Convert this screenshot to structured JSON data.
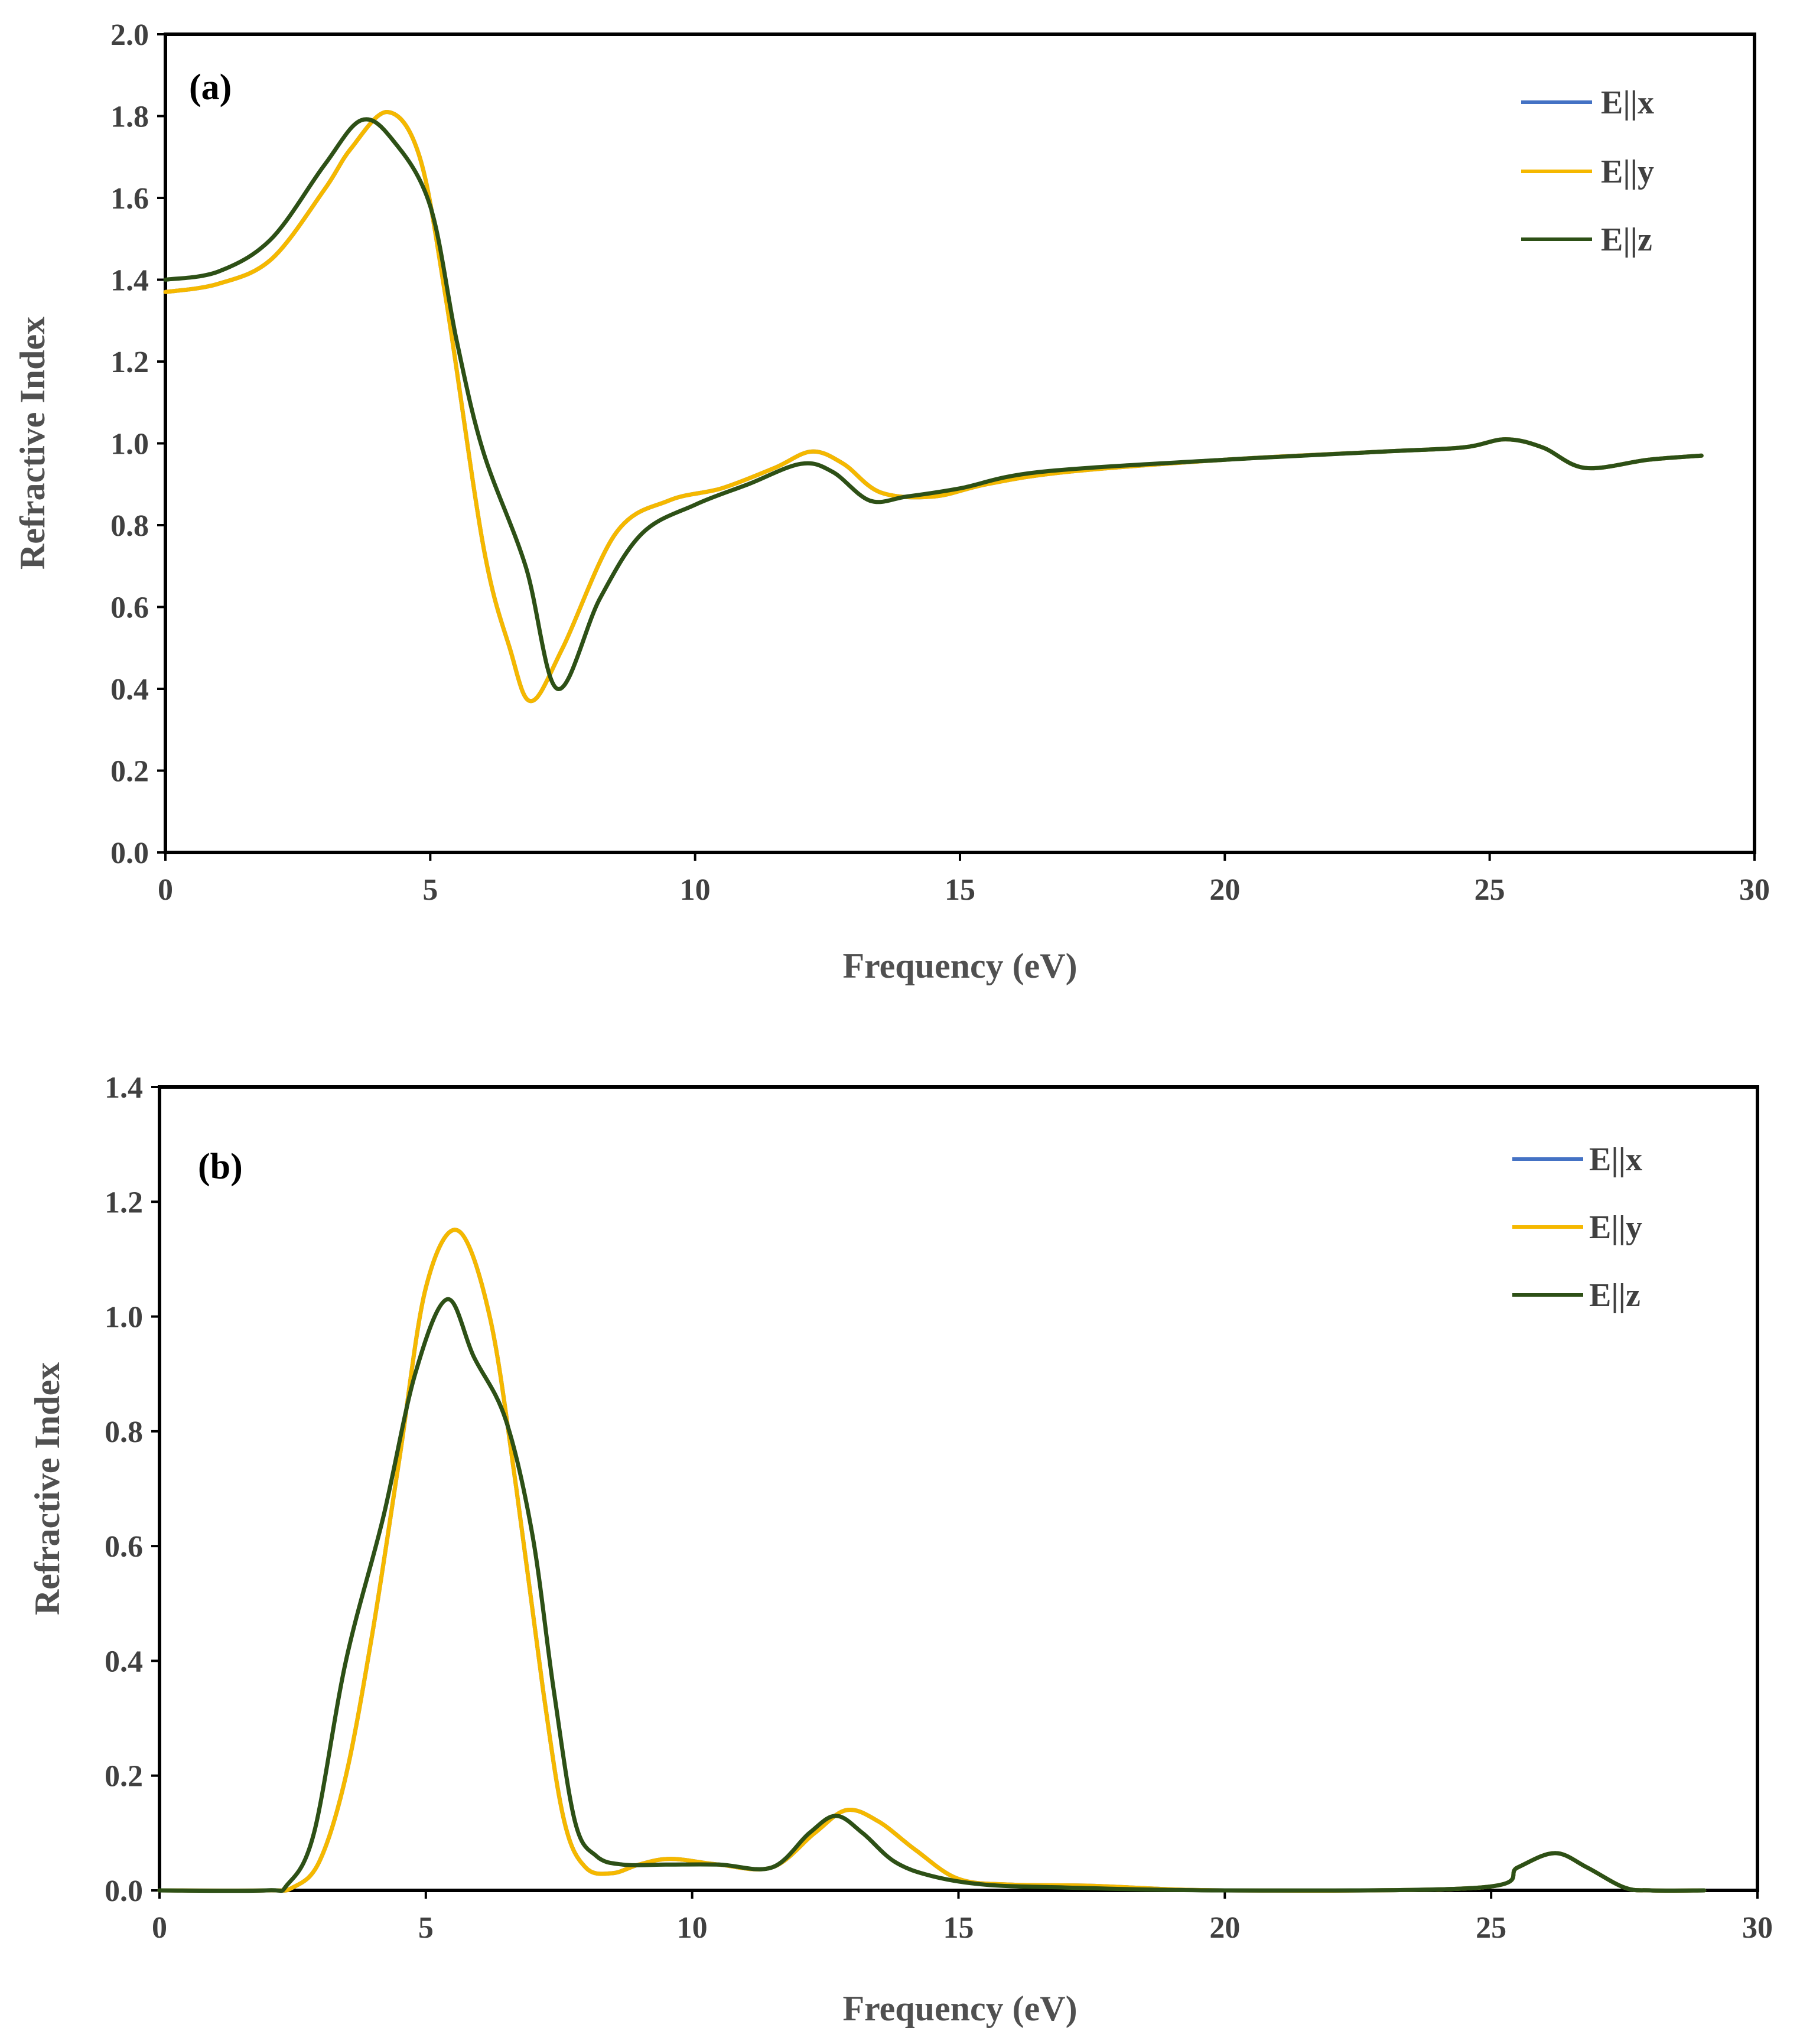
{
  "chart_data": [
    {
      "type": "line",
      "panel_label": "(a)",
      "xlabel": "Frequency (eV)",
      "ylabel": "Refractive Index",
      "xlim": [
        0,
        30
      ],
      "ylim": [
        0,
        2.0
      ],
      "x_ticks": [
        "0",
        "5",
        "10",
        "15",
        "20",
        "25",
        "30"
      ],
      "y_ticks": [
        "0.0",
        "0.2",
        "0.4",
        "0.6",
        "0.8",
        "1.0",
        "1.2",
        "1.4",
        "1.6",
        "1.8",
        "2.0"
      ],
      "legend_position": "top-right",
      "series": [
        {
          "name": "E||x",
          "color": "#4472C4",
          "x": [
            0,
            1,
            2,
            3,
            3.5,
            4.2,
            4.8,
            5.3,
            6.0,
            6.5,
            6.9,
            7.5,
            8.5,
            9.5,
            10.5,
            11.5,
            12.2,
            12.8,
            13.5,
            14.5,
            15.5,
            17,
            20,
            23,
            24.5,
            25.3,
            26,
            26.8,
            28,
            29
          ],
          "y": [
            1.37,
            1.39,
            1.45,
            1.62,
            1.72,
            1.81,
            1.7,
            1.35,
            0.75,
            0.5,
            0.37,
            0.5,
            0.78,
            0.86,
            0.89,
            0.94,
            0.98,
            0.95,
            0.88,
            0.87,
            0.9,
            0.93,
            0.96,
            0.98,
            0.99,
            1.01,
            0.99,
            0.94,
            0.96,
            0.97
          ]
        },
        {
          "name": "E||y",
          "color": "#F5B800",
          "x": [
            0,
            1,
            2,
            3,
            3.5,
            4.2,
            4.8,
            5.3,
            6.0,
            6.5,
            6.9,
            7.5,
            8.5,
            9.5,
            10.5,
            11.5,
            12.2,
            12.8,
            13.5,
            14.5,
            15.5,
            17,
            20,
            23,
            24.5,
            25.3,
            26,
            26.8,
            28,
            29
          ],
          "y": [
            1.37,
            1.39,
            1.45,
            1.62,
            1.72,
            1.81,
            1.7,
            1.35,
            0.75,
            0.5,
            0.37,
            0.5,
            0.78,
            0.86,
            0.89,
            0.94,
            0.98,
            0.95,
            0.88,
            0.87,
            0.9,
            0.93,
            0.96,
            0.98,
            0.99,
            1.01,
            0.99,
            0.94,
            0.96,
            0.97
          ]
        },
        {
          "name": "E||z",
          "color": "#2D5016",
          "x": [
            0,
            1,
            2,
            3,
            3.7,
            4.3,
            5.0,
            5.5,
            6.0,
            6.8,
            7.4,
            8.2,
            9.0,
            10.0,
            11.0,
            12.0,
            12.6,
            13.3,
            14.0,
            15.0,
            16.5,
            20,
            23,
            24.5,
            25.3,
            26,
            26.8,
            28,
            29
          ],
          "y": [
            1.4,
            1.42,
            1.5,
            1.68,
            1.79,
            1.74,
            1.58,
            1.25,
            0.98,
            0.7,
            0.4,
            0.62,
            0.78,
            0.85,
            0.9,
            0.95,
            0.93,
            0.86,
            0.87,
            0.89,
            0.93,
            0.96,
            0.98,
            0.99,
            1.01,
            0.99,
            0.94,
            0.96,
            0.97
          ]
        }
      ]
    },
    {
      "type": "line",
      "panel_label": "(b)",
      "xlabel": "Frequency (eV)",
      "ylabel": "Refractive Index",
      "xlim": [
        0,
        30
      ],
      "ylim": [
        0,
        1.4
      ],
      "x_ticks": [
        "0",
        "5",
        "10",
        "15",
        "20",
        "25",
        "30"
      ],
      "y_ticks": [
        "0.0",
        "0.2",
        "0.4",
        "0.6",
        "0.8",
        "1.0",
        "1.2",
        "1.4"
      ],
      "legend_position": "top-right",
      "series": [
        {
          "name": "E||x",
          "color": "#4472C4",
          "x": [
            0,
            2,
            2.5,
            3.0,
            3.5,
            4.0,
            4.5,
            5.0,
            5.6,
            6.2,
            6.7,
            7.2,
            7.6,
            8.0,
            8.5,
            9.0,
            9.6,
            10.5,
            11.5,
            12.3,
            12.9,
            13.5,
            14.2,
            15.0,
            16.0,
            17.5,
            20,
            24.8,
            25.5,
            26.2,
            26.8,
            27.5,
            28,
            29
          ],
          "y": [
            0,
            0,
            0.005,
            0.05,
            0.2,
            0.45,
            0.75,
            1.05,
            1.15,
            1.0,
            0.7,
            0.35,
            0.12,
            0.04,
            0.03,
            0.045,
            0.055,
            0.045,
            0.04,
            0.1,
            0.14,
            0.12,
            0.07,
            0.02,
            0.01,
            0.008,
            0,
            0.005,
            0.04,
            0.065,
            0.04,
            0.005,
            0,
            0
          ]
        },
        {
          "name": "E||y",
          "color": "#F5B800",
          "x": [
            0,
            2,
            2.5,
            3.0,
            3.5,
            4.0,
            4.5,
            5.0,
            5.6,
            6.2,
            6.7,
            7.2,
            7.6,
            8.0,
            8.5,
            9.0,
            9.6,
            10.5,
            11.5,
            12.3,
            12.9,
            13.5,
            14.2,
            15.0,
            16.0,
            17.5,
            20,
            24.8,
            25.5,
            26.2,
            26.8,
            27.5,
            28,
            29
          ],
          "y": [
            0,
            0,
            0.005,
            0.05,
            0.2,
            0.45,
            0.75,
            1.05,
            1.15,
            1.0,
            0.7,
            0.35,
            0.12,
            0.04,
            0.03,
            0.045,
            0.055,
            0.045,
            0.04,
            0.1,
            0.14,
            0.12,
            0.07,
            0.02,
            0.01,
            0.008,
            0,
            0.005,
            0.04,
            0.065,
            0.04,
            0.005,
            0,
            0
          ]
        },
        {
          "name": "E||z",
          "color": "#2D5016",
          "x": [
            0,
            2,
            2.4,
            2.9,
            3.5,
            4.2,
            4.8,
            5.4,
            5.9,
            6.5,
            7.0,
            7.4,
            7.8,
            8.2,
            8.7,
            9.5,
            10.5,
            11.5,
            12.2,
            12.7,
            13.2,
            13.8,
            14.5,
            15.5,
            17,
            20,
            24.8,
            25.5,
            26.2,
            26.8,
            27.5,
            28,
            29
          ],
          "y": [
            0,
            0,
            0.01,
            0.1,
            0.4,
            0.65,
            0.9,
            1.03,
            0.93,
            0.82,
            0.62,
            0.35,
            0.12,
            0.06,
            0.045,
            0.045,
            0.045,
            0.04,
            0.1,
            0.13,
            0.1,
            0.05,
            0.025,
            0.01,
            0.005,
            0,
            0.005,
            0.04,
            0.065,
            0.04,
            0.005,
            0,
            0
          ]
        }
      ]
    }
  ]
}
